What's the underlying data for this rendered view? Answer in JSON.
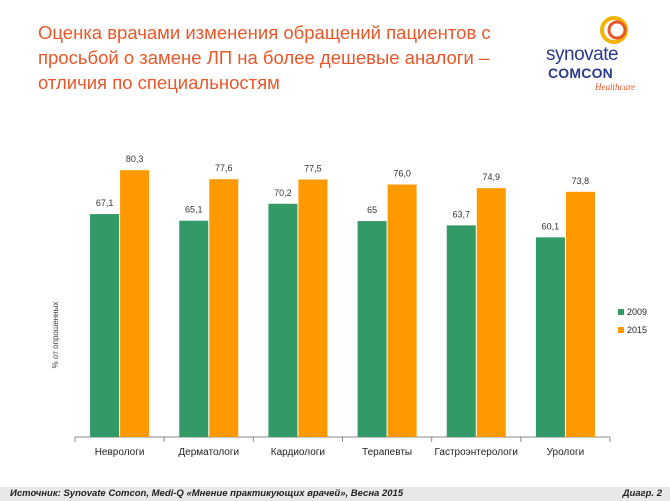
{
  "header": {
    "title": "Оценка врачами изменения обращений пациентов с просьбой о замене ЛП на более дешевые аналоги – отличия по специальностям"
  },
  "logo": {
    "line1": "synovate",
    "line2": "COMCON",
    "line3": "Healthcare",
    "accent_color": "#e8572a",
    "brand_color": "#2b3a8a"
  },
  "footer": {
    "source": "Источник: Synovate Comcon, Medi-Q «Мнение практикующих врачей», Весна 2015",
    "diagram_number": "Диагр. 2"
  },
  "chart_data": {
    "type": "bar",
    "title": "",
    "xlabel": "",
    "ylabel": "% от опрошенных",
    "ylim": [
      0,
      90
    ],
    "grid": false,
    "legend_position": "right",
    "categories": [
      "Неврологи",
      "Дерматологи",
      "Кардиологи",
      "Терапевты",
      "Гастроэнтерологи",
      "Урологи"
    ],
    "series": [
      {
        "name": "2009",
        "color": "#339966",
        "values": [
          67.1,
          65.1,
          70.2,
          65,
          63.7,
          60.1
        ],
        "labels": [
          "67,1",
          "65,1",
          "70,2",
          "65",
          "63,7",
          "60,1"
        ]
      },
      {
        "name": "2015",
        "color": "#ff9900",
        "values": [
          80.3,
          77.6,
          77.5,
          76.0,
          74.9,
          73.8
        ],
        "labels": [
          "80,3",
          "77,6",
          "77,5",
          "76,0",
          "74,9",
          "73,8"
        ]
      }
    ]
  }
}
